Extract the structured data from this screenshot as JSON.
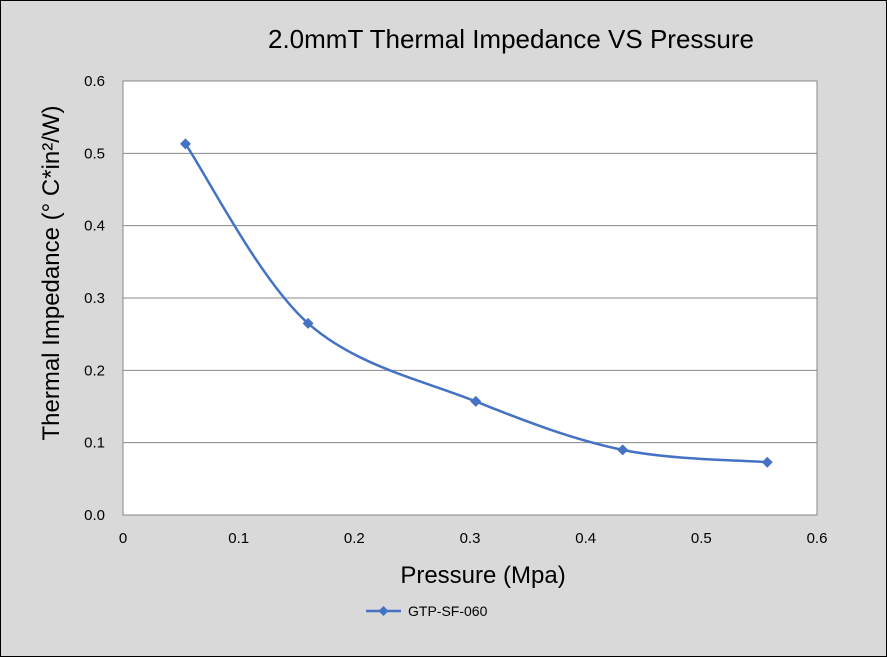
{
  "chart_data": {
    "type": "scatter",
    "title": "2.0mmT Thermal Impedance VS Pressure",
    "xlabel": "Pressure (Mpa)",
    "ylabel": "Thermal Impedance (° C*in²/W)",
    "xlim": [
      0,
      0.6
    ],
    "ylim": [
      0,
      0.6
    ],
    "xticks": [
      "0",
      "0.1",
      "0.2",
      "0.3",
      "0.4",
      "0.5",
      "0.6"
    ],
    "yticks": [
      "0.0",
      "0.1",
      "0.2",
      "0.3",
      "0.4",
      "0.5",
      "0.6"
    ],
    "grid": true,
    "legend_position": "bottom",
    "smooth": true,
    "series": [
      {
        "name": "GTP-SF-060",
        "color": "#4472c4",
        "marker": "diamond",
        "x": [
          0.054,
          0.16,
          0.305,
          0.432,
          0.557
        ],
        "y": [
          0.513,
          0.265,
          0.157,
          0.09,
          0.073
        ]
      }
    ]
  }
}
